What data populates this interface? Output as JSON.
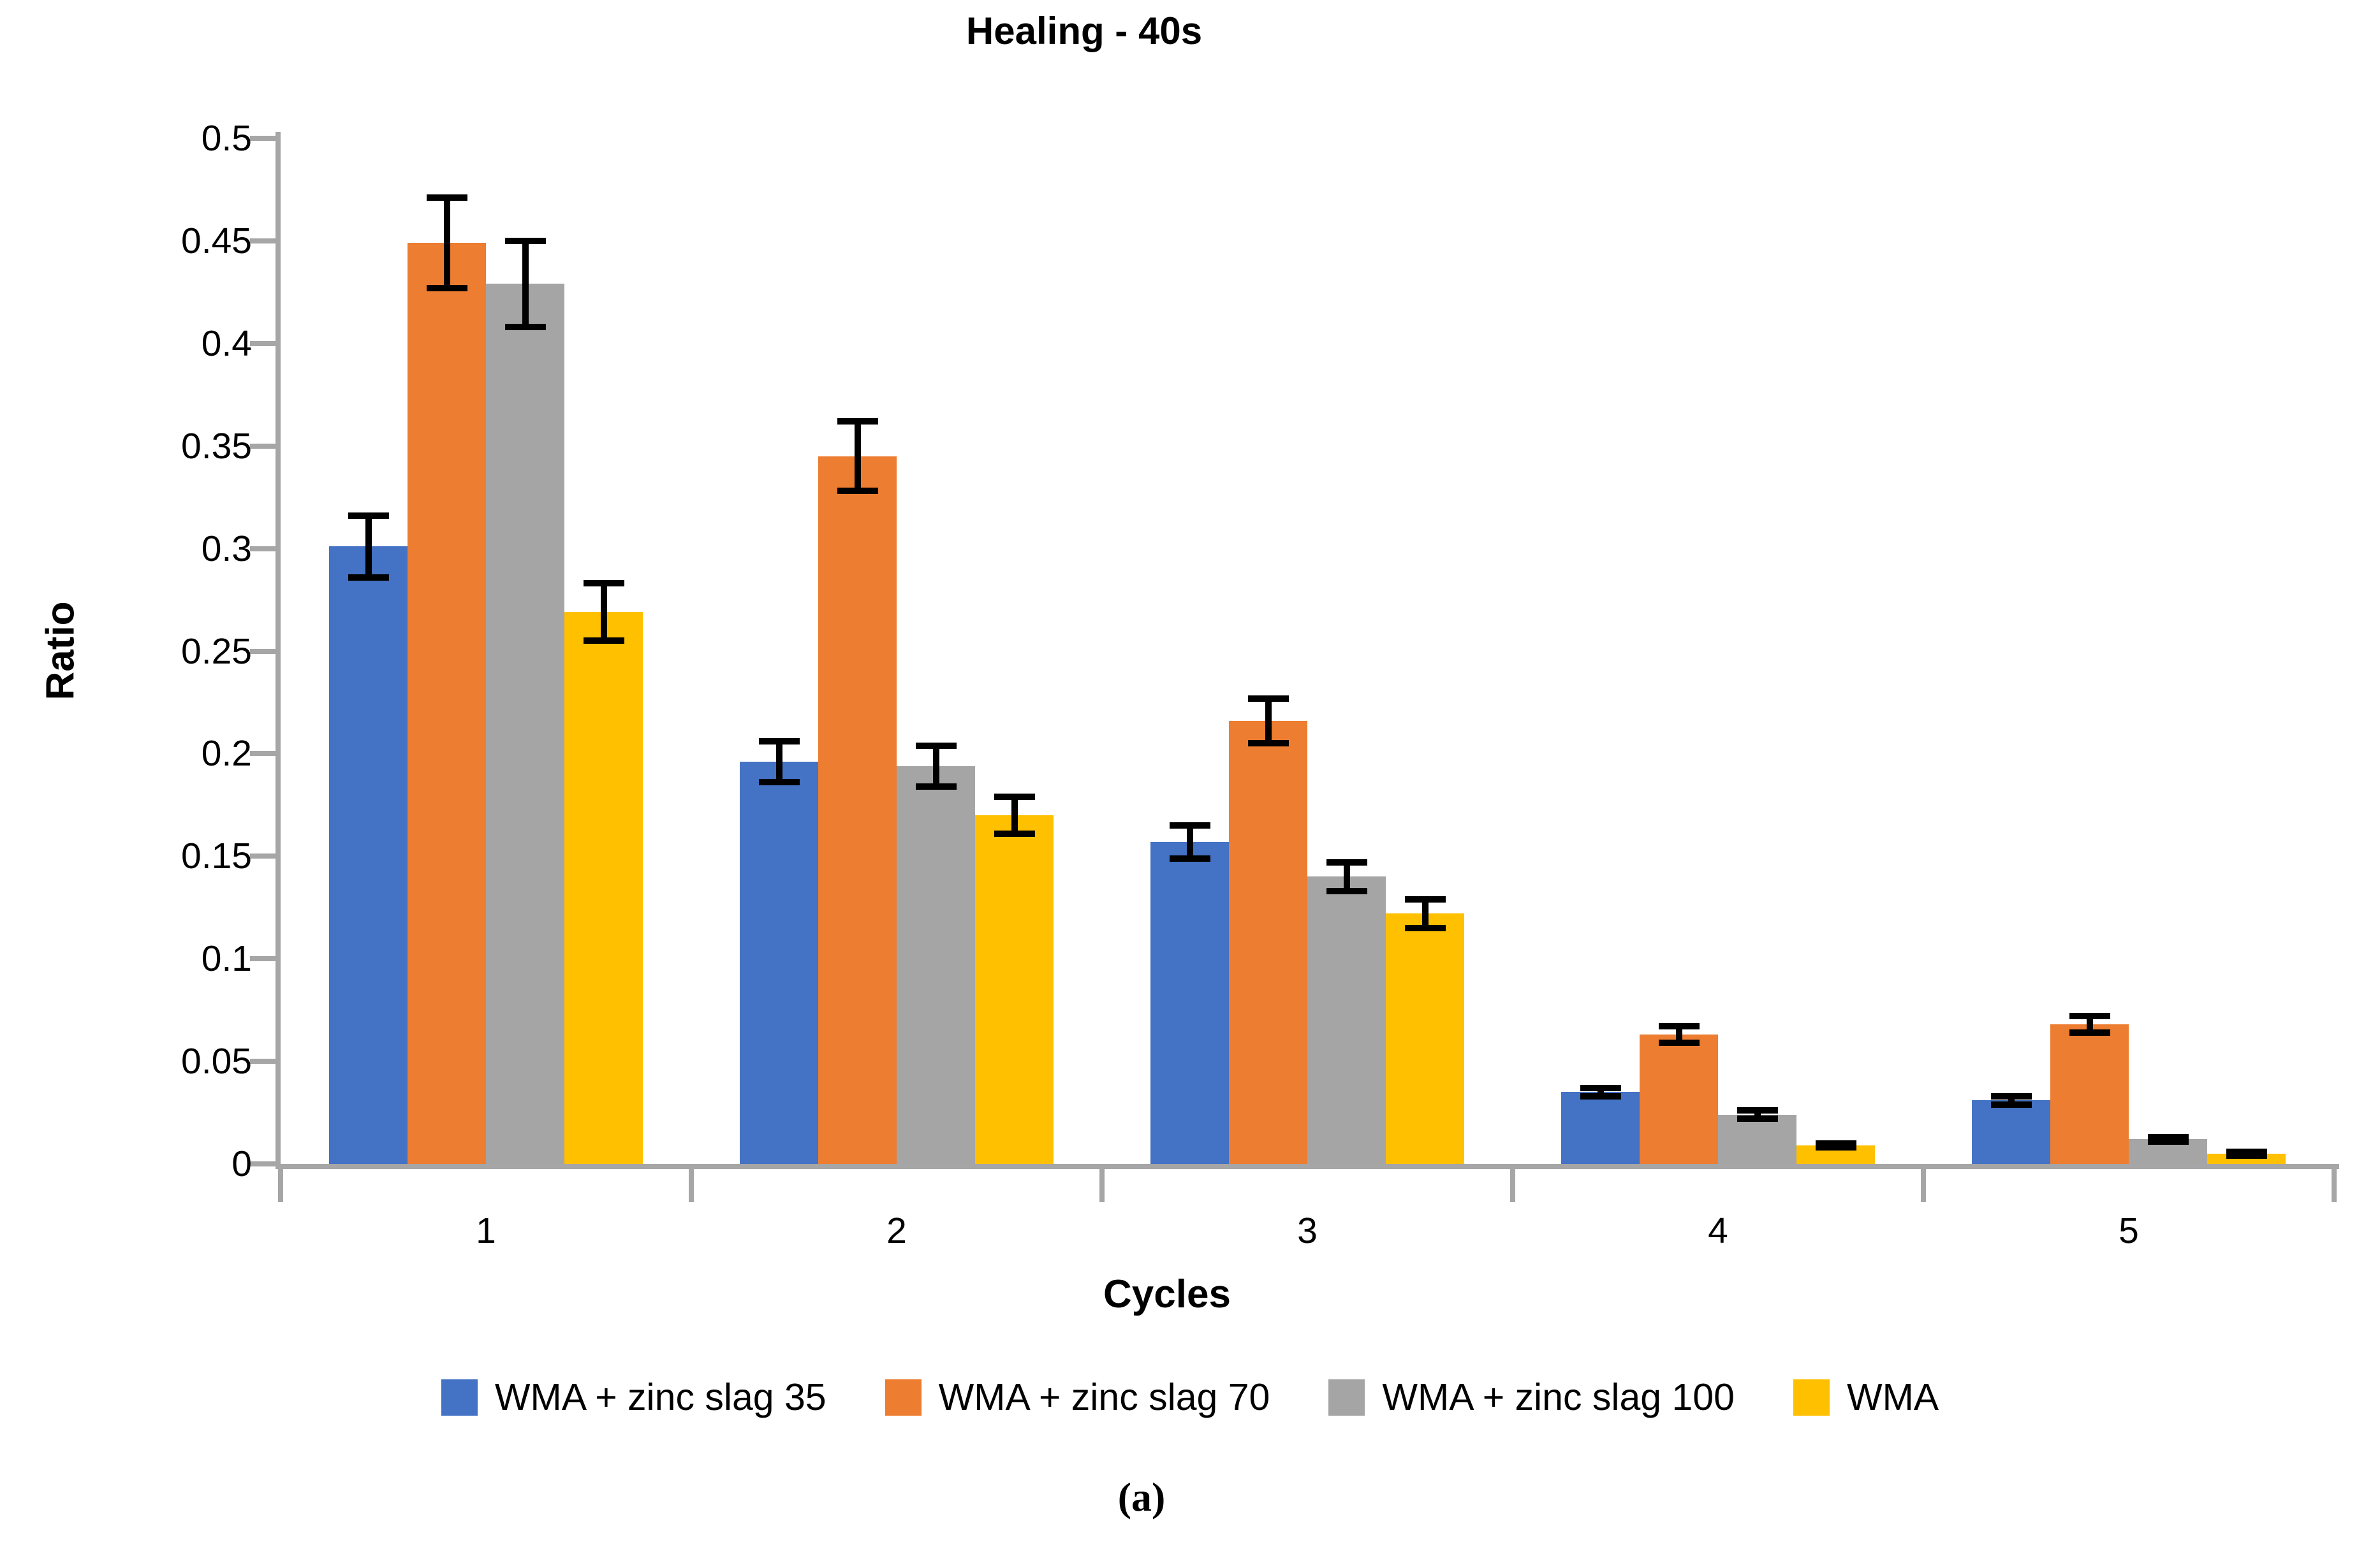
{
  "caption": "(a)",
  "chart_data": {
    "type": "bar",
    "title": "Healing - 40s",
    "xlabel": "Cycles",
    "ylabel": "Ratio",
    "ylim": [
      0,
      0.5
    ],
    "ytick_step": 0.05,
    "yticks": [
      "0",
      "0.05",
      "0.1",
      "0.15",
      "0.2",
      "0.25",
      "0.3",
      "0.35",
      "0.4",
      "0.45",
      "0.5"
    ],
    "grid": false,
    "legend_position": "bottom",
    "error_bars": true,
    "axis_color": "#A6A6A6",
    "error_bar_color": "#000000",
    "text_color": "#000000",
    "categories": [
      "1",
      "2",
      "3",
      "4",
      "5"
    ],
    "series": [
      {
        "name": "WMA + zinc slag 35",
        "color": "#4472C4",
        "values": [
          0.301,
          0.196,
          0.157,
          0.035,
          0.031
        ],
        "errors": [
          0.015,
          0.01,
          0.008,
          0.002,
          0.002
        ]
      },
      {
        "name": "WMA + zinc slag 70",
        "color": "#ED7D31",
        "values": [
          0.449,
          0.345,
          0.216,
          0.063,
          0.068
        ],
        "errors": [
          0.022,
          0.017,
          0.011,
          0.004,
          0.004
        ]
      },
      {
        "name": "WMA + zinc slag 100",
        "color": "#A5A5A5",
        "values": [
          0.429,
          0.194,
          0.14,
          0.024,
          0.012
        ],
        "errors": [
          0.021,
          0.01,
          0.007,
          0.002,
          0.001
        ]
      },
      {
        "name": "WMA",
        "color": "#FFC000",
        "values": [
          0.269,
          0.17,
          0.122,
          0.009,
          0.005
        ],
        "errors": [
          0.014,
          0.009,
          0.007,
          0.001,
          0.001
        ]
      }
    ]
  }
}
